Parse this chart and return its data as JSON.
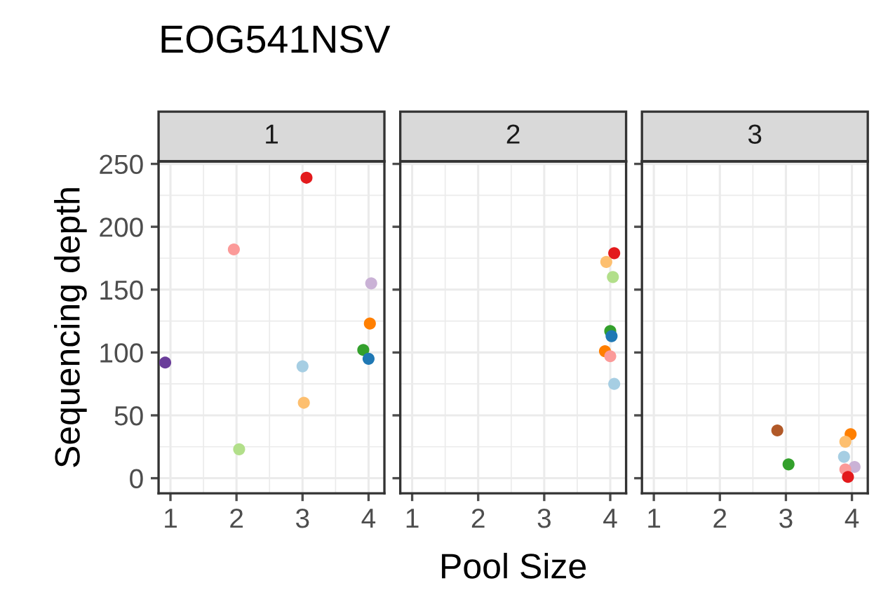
{
  "chart_data": [
    {
      "type": "scatter",
      "title": "EOG541NSV",
      "subtitle": "1",
      "ylabel": "Sequencing depth",
      "x": [
        0.92,
        1.96,
        2.04,
        3.06,
        3.0,
        3.02,
        3.92,
        4.0,
        4.02,
        4.04
      ],
      "values": [
        92,
        182,
        23,
        239,
        89,
        60,
        102,
        95,
        123,
        155
      ],
      "colors": [
        "#6a3d9a",
        "#fb9a99",
        "#b2df8a",
        "#e31a1c",
        "#a6cee3",
        "#fdbf6f",
        "#33a02c",
        "#1f78b4",
        "#ff7f00",
        "#cab2d6"
      ],
      "xlim": [
        0.82,
        4.24
      ],
      "ylim": [
        -12,
        252
      ],
      "xticks": [
        1,
        2,
        3,
        4
      ],
      "yticks": [
        0,
        50,
        100,
        150,
        200,
        250
      ],
      "grid": true,
      "marker": "circle"
    },
    {
      "type": "scatter",
      "subtitle": "2",
      "xlabel": "Pool Size",
      "x": [
        4.06,
        3.94,
        4.04,
        4.0,
        4.02,
        3.92,
        4.0,
        4.06
      ],
      "values": [
        179,
        172,
        160,
        117,
        113,
        101,
        97,
        75
      ],
      "colors": [
        "#e31a1c",
        "#fdbf6f",
        "#b2df8a",
        "#33a02c",
        "#1f78b4",
        "#ff7f00",
        "#fb9a99",
        "#a6cee3"
      ],
      "xlim": [
        0.82,
        4.24
      ],
      "ylim": [
        -12,
        252
      ],
      "xticks": [
        1,
        2,
        3,
        4
      ],
      "yticks": [
        0,
        50,
        100,
        150,
        200,
        250
      ],
      "grid": true,
      "marker": "circle",
      "tick_labels": "x"
    },
    {
      "type": "scatter",
      "subtitle": "3",
      "x": [
        2.87,
        3.04,
        null,
        null,
        3.98,
        3.9,
        3.88,
        4.04,
        3.9,
        null,
        3.94
      ],
      "values": [
        38,
        11,
        null,
        null,
        35,
        29,
        17,
        9,
        7,
        null,
        1
      ],
      "colors": [
        "#b15928",
        "#33a02c",
        "#6a3d9a",
        "#ffff99",
        "#ff7f00",
        "#fdbf6f",
        "#a6cee3",
        "#cab2d6",
        "#fb9a99",
        "#b2df8a",
        "#e31a1c"
      ],
      "xlim": [
        0.82,
        4.24
      ],
      "ylim": [
        -12,
        252
      ],
      "xticks": [
        1,
        2,
        3,
        4
      ],
      "yticks": [
        0,
        50,
        100,
        150,
        200,
        250
      ],
      "grid": true,
      "marker": "circle",
      "tick_labels": "x"
    }
  ]
}
